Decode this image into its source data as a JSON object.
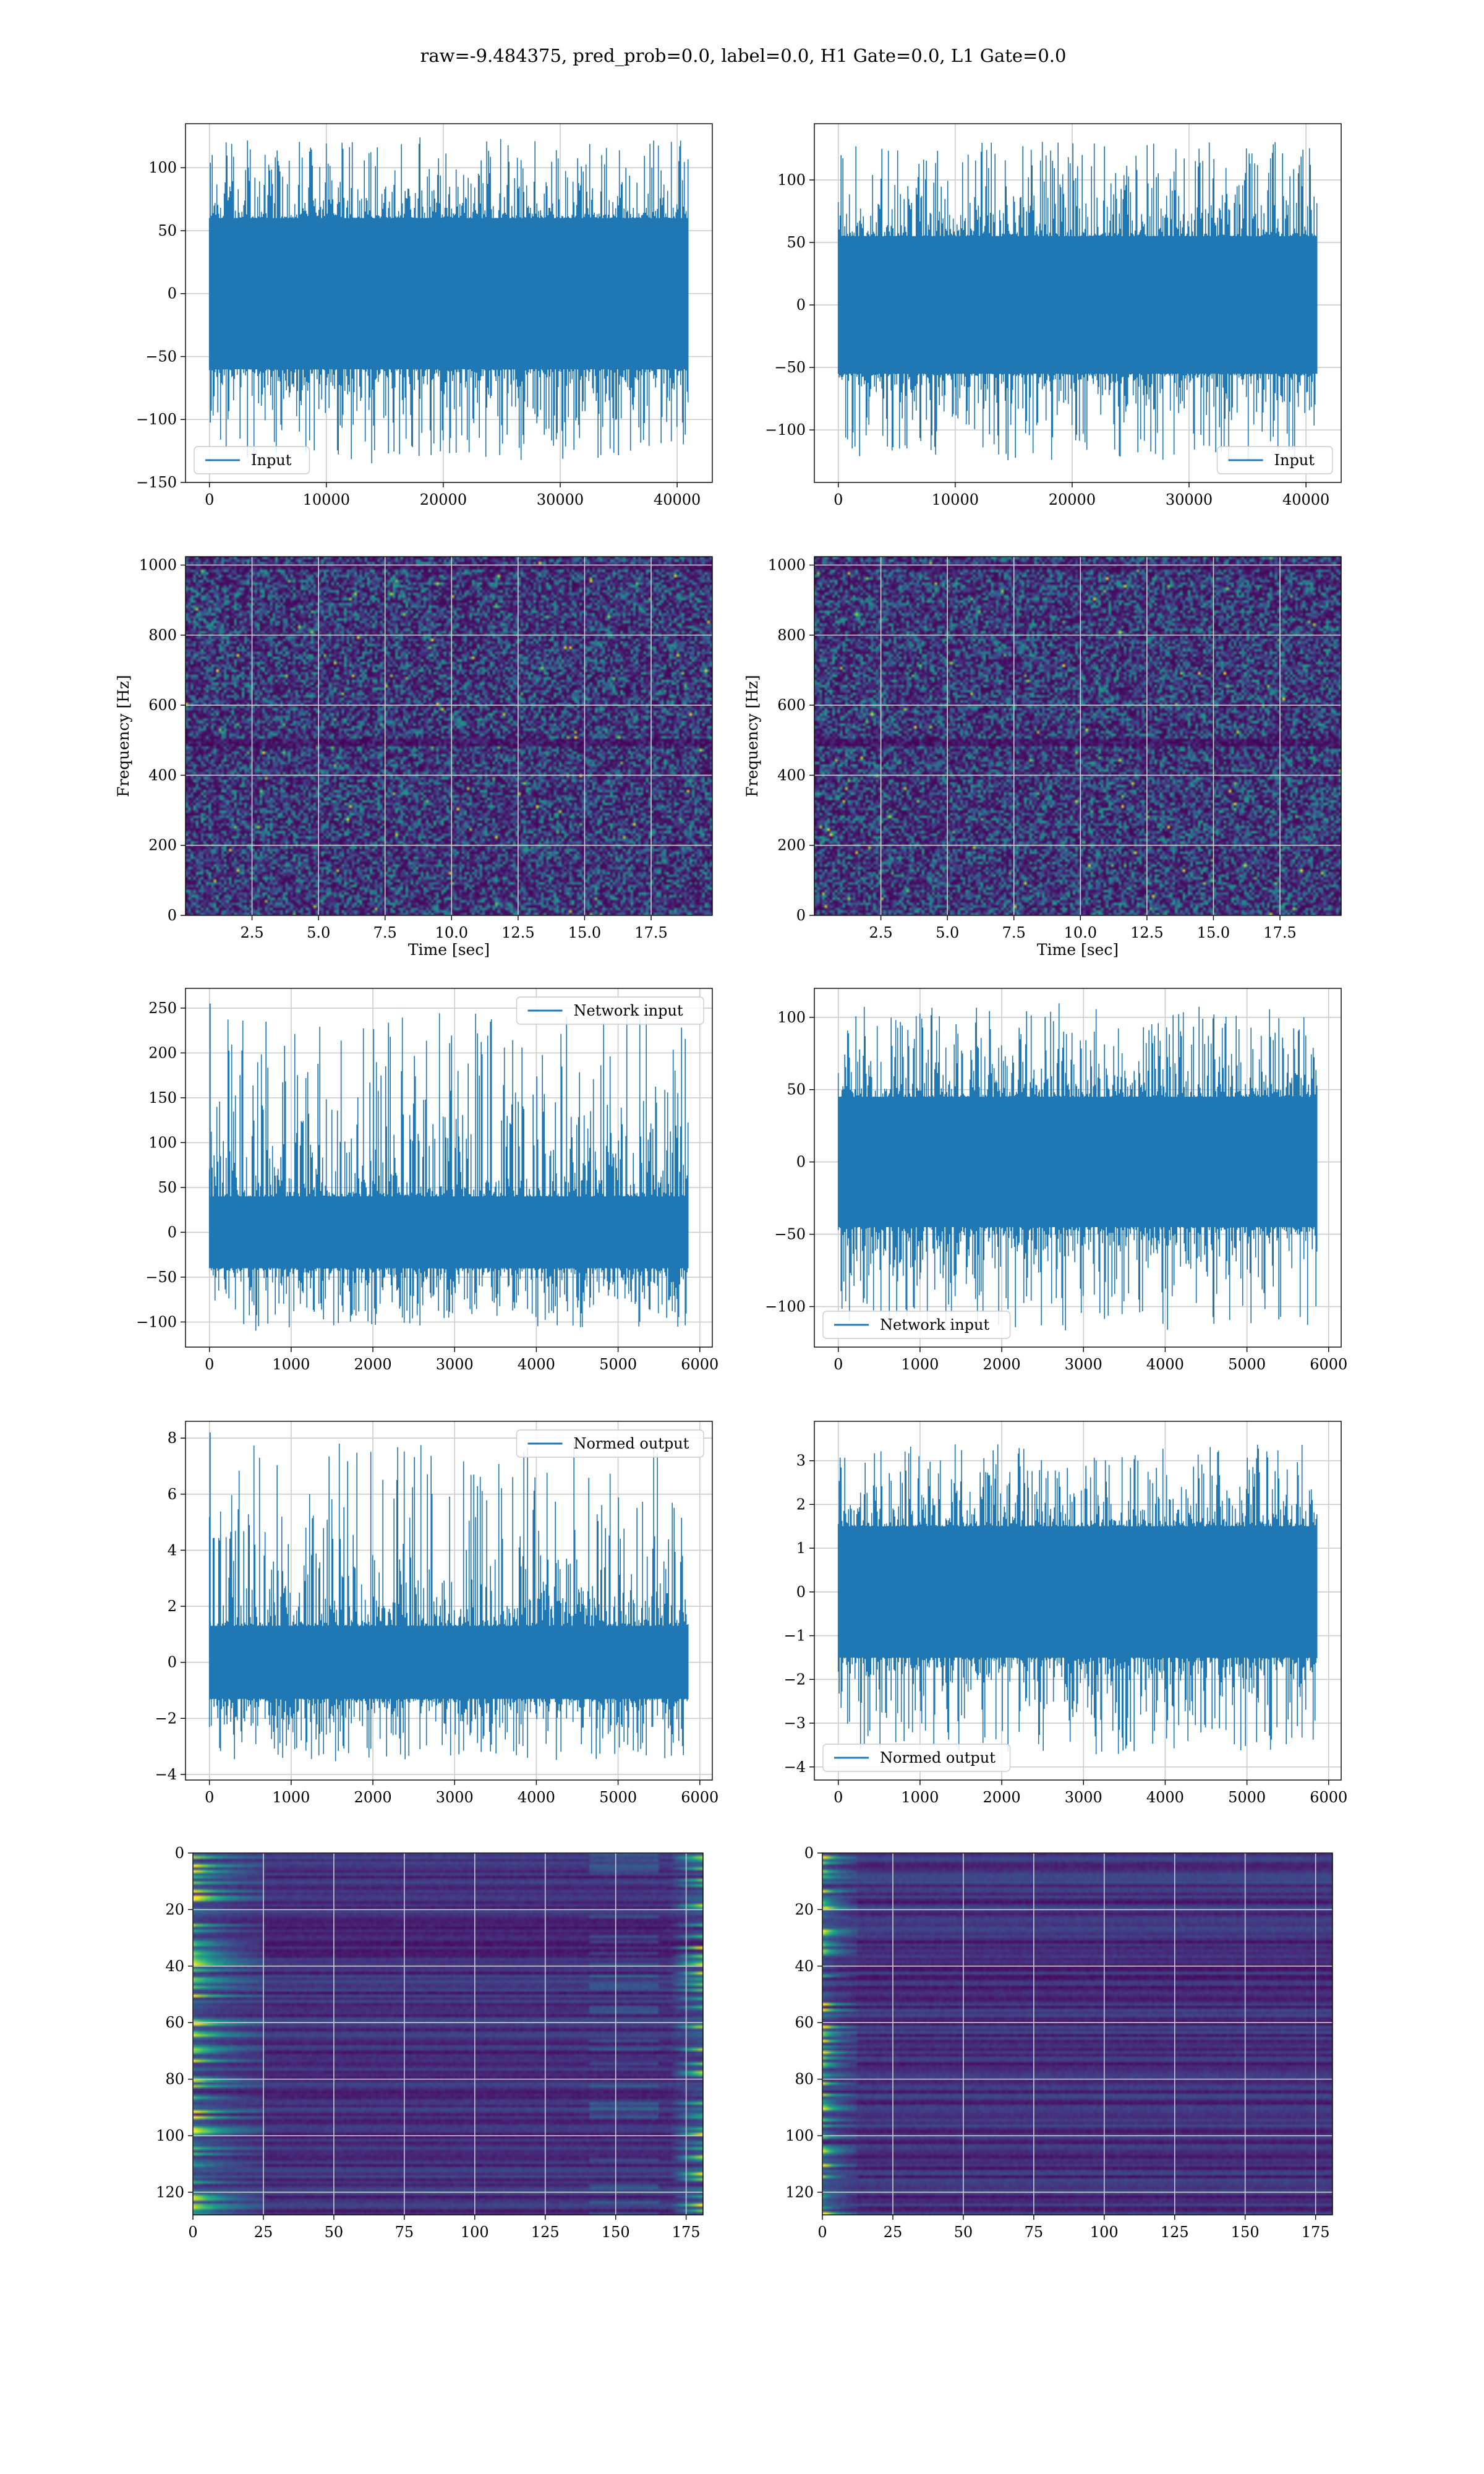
{
  "figure": {
    "suptitle": "raw=-9.484375, pred_prob=0.0, label=0.0, H1 Gate=0.0, L1 Gate=0.0"
  },
  "colors": {
    "series": "#1f77b4",
    "grid": "#cccccc",
    "viridis_low": "#440154",
    "viridis_mid": "#21918c",
    "viridis_high": "#fde725"
  },
  "chart_data": [
    {
      "id": "input-h1",
      "type": "line",
      "series": [
        {
          "name": "Input",
          "envelope_x": [
            0,
            40960
          ],
          "band": [
            -60,
            60
          ],
          "peak_max": 125,
          "peak_min": -135
        }
      ],
      "xlim": [
        -2048,
        43008
      ],
      "ylim": [
        -150,
        135
      ],
      "xticks": [
        0,
        10000,
        20000,
        30000,
        40000
      ],
      "xticklabels": [
        "0",
        "10000",
        "20000",
        "30000",
        "40000"
      ],
      "yticks": [
        -150,
        -100,
        -50,
        0,
        50,
        100
      ],
      "yticklabels": [
        "−150",
        "−100",
        "−50",
        "0",
        "50",
        "100"
      ],
      "legend": {
        "label": "Input",
        "loc": "lower left"
      },
      "grid": true,
      "xlabel": "",
      "ylabel": ""
    },
    {
      "id": "input-l1",
      "type": "line",
      "series": [
        {
          "name": "Input",
          "envelope_x": [
            0,
            40960
          ],
          "band": [
            -55,
            55
          ],
          "peak_max": 135,
          "peak_min": -128
        }
      ],
      "xlim": [
        -2048,
        43008
      ],
      "ylim": [
        -142,
        145
      ],
      "xticks": [
        0,
        10000,
        20000,
        30000,
        40000
      ],
      "xticklabels": [
        "0",
        "10000",
        "20000",
        "30000",
        "40000"
      ],
      "yticks": [
        -100,
        -50,
        0,
        50,
        100
      ],
      "yticklabels": [
        "−100",
        "−50",
        "0",
        "50",
        "100"
      ],
      "legend": {
        "label": "Input",
        "loc": "lower right"
      },
      "grid": true,
      "xlabel": "",
      "ylabel": ""
    },
    {
      "id": "spectrogram-h1",
      "type": "heatmap",
      "xlim": [
        0,
        19.8
      ],
      "ylim": [
        0,
        1024
      ],
      "xticks": [
        2.5,
        5.0,
        7.5,
        10.0,
        12.5,
        15.0,
        17.5
      ],
      "xticklabels": [
        "2.5",
        "5.0",
        "7.5",
        "10.0",
        "12.5",
        "15.0",
        "17.5"
      ],
      "yticks": [
        0,
        200,
        400,
        600,
        800,
        1000
      ],
      "yticklabels": [
        "0",
        "200",
        "400",
        "600",
        "800",
        "1000"
      ],
      "xlabel": "Time [sec]",
      "ylabel": "Frequency [Hz]",
      "colormap": "viridis",
      "grid": true
    },
    {
      "id": "spectrogram-l1",
      "type": "heatmap",
      "xlim": [
        0,
        19.8
      ],
      "ylim": [
        0,
        1024
      ],
      "xticks": [
        2.5,
        5.0,
        7.5,
        10.0,
        12.5,
        15.0,
        17.5
      ],
      "xticklabels": [
        "2.5",
        "5.0",
        "7.5",
        "10.0",
        "12.5",
        "15.0",
        "17.5"
      ],
      "yticks": [
        0,
        200,
        400,
        600,
        800,
        1000
      ],
      "yticklabels": [
        "0",
        "200",
        "400",
        "600",
        "800",
        "1000"
      ],
      "xlabel": "Time [sec]",
      "ylabel": "Frequency [Hz]",
      "colormap": "viridis",
      "grid": true
    },
    {
      "id": "network-input-h1",
      "type": "line",
      "series": [
        {
          "name": "Network input",
          "envelope_x": [
            0,
            5860
          ],
          "band": [
            -40,
            40
          ],
          "peak_max": 255,
          "peak_min": -110
        }
      ],
      "xlim": [
        -293,
        6153
      ],
      "ylim": [
        -128,
        272
      ],
      "xticks": [
        0,
        1000,
        2000,
        3000,
        4000,
        5000,
        6000
      ],
      "xticklabels": [
        "0",
        "1000",
        "2000",
        "3000",
        "4000",
        "5000",
        "6000"
      ],
      "yticks": [
        -100,
        -50,
        0,
        50,
        100,
        150,
        200,
        250
      ],
      "yticklabels": [
        "−100",
        "−50",
        "0",
        "50",
        "100",
        "150",
        "200",
        "250"
      ],
      "legend": {
        "label": "Network input",
        "loc": "upper right"
      },
      "grid": true,
      "xlabel": "",
      "ylabel": ""
    },
    {
      "id": "network-input-l1",
      "type": "line",
      "series": [
        {
          "name": "Network input",
          "envelope_x": [
            0,
            5860
          ],
          "band": [
            -45,
            45
          ],
          "peak_max": 110,
          "peak_min": -118
        }
      ],
      "xlim": [
        -293,
        6153
      ],
      "ylim": [
        -128,
        120
      ],
      "xticks": [
        0,
        1000,
        2000,
        3000,
        4000,
        5000,
        6000
      ],
      "xticklabels": [
        "0",
        "1000",
        "2000",
        "3000",
        "4000",
        "5000",
        "6000"
      ],
      "yticks": [
        -100,
        -50,
        0,
        50,
        100
      ],
      "yticklabels": [
        "−100",
        "−50",
        "0",
        "50",
        "100"
      ],
      "legend": {
        "label": "Network input",
        "loc": "lower left"
      },
      "grid": true,
      "xlabel": "",
      "ylabel": ""
    },
    {
      "id": "normed-output-h1",
      "type": "line",
      "series": [
        {
          "name": "Normed output",
          "envelope_x": [
            0,
            5860
          ],
          "band": [
            -1.3,
            1.3
          ],
          "peak_max": 8.2,
          "peak_min": -3.6
        }
      ],
      "xlim": [
        -293,
        6153
      ],
      "ylim": [
        -4.2,
        8.6
      ],
      "xticks": [
        0,
        1000,
        2000,
        3000,
        4000,
        5000,
        6000
      ],
      "xticklabels": [
        "0",
        "1000",
        "2000",
        "3000",
        "4000",
        "5000",
        "6000"
      ],
      "yticks": [
        -4,
        -2,
        0,
        2,
        4,
        6,
        8
      ],
      "yticklabels": [
        "−4",
        "−2",
        "0",
        "2",
        "4",
        "6",
        "8"
      ],
      "legend": {
        "label": "Normed output",
        "loc": "upper right"
      },
      "grid": true,
      "xlabel": "",
      "ylabel": ""
    },
    {
      "id": "normed-output-l1",
      "type": "line",
      "series": [
        {
          "name": "Normed output",
          "envelope_x": [
            0,
            5860
          ],
          "band": [
            -1.5,
            1.5
          ],
          "peak_max": 3.5,
          "peak_min": -3.8
        }
      ],
      "xlim": [
        -293,
        6153
      ],
      "ylim": [
        -4.3,
        3.9
      ],
      "xticks": [
        0,
        1000,
        2000,
        3000,
        4000,
        5000,
        6000
      ],
      "xticklabels": [
        "0",
        "1000",
        "2000",
        "3000",
        "4000",
        "5000",
        "6000"
      ],
      "yticks": [
        -4,
        -3,
        -2,
        -1,
        0,
        1,
        2,
        3
      ],
      "yticklabels": [
        "−4",
        "−3",
        "−2",
        "−1",
        "0",
        "1",
        "2",
        "3"
      ],
      "legend": {
        "label": "Normed output",
        "loc": "lower left"
      },
      "grid": true,
      "xlabel": "",
      "ylabel": ""
    },
    {
      "id": "feature-map-h1",
      "type": "heatmap",
      "xlim": [
        0,
        181
      ],
      "ylim": [
        128,
        0
      ],
      "xticks": [
        0,
        25,
        50,
        75,
        100,
        125,
        150,
        175
      ],
      "xticklabels": [
        "0",
        "25",
        "50",
        "75",
        "100",
        "125",
        "150",
        "175"
      ],
      "yticks": [
        0,
        20,
        40,
        60,
        80,
        100,
        120
      ],
      "yticklabels": [
        "0",
        "20",
        "40",
        "60",
        "80",
        "100",
        "120"
      ],
      "colormap": "viridis",
      "grid": true,
      "bright_left_cols": 25,
      "bright_right_cols": 12
    },
    {
      "id": "feature-map-l1",
      "type": "heatmap",
      "xlim": [
        0,
        181
      ],
      "ylim": [
        128,
        0
      ],
      "xticks": [
        0,
        25,
        50,
        75,
        100,
        125,
        150,
        175
      ],
      "xticklabels": [
        "0",
        "25",
        "50",
        "75",
        "100",
        "125",
        "150",
        "175"
      ],
      "yticks": [
        0,
        20,
        40,
        60,
        80,
        100,
        120
      ],
      "yticklabels": [
        "0",
        "20",
        "40",
        "60",
        "80",
        "100",
        "120"
      ],
      "colormap": "viridis",
      "grid": true,
      "bright_left_cols": 12,
      "bright_right_cols": 0
    }
  ]
}
